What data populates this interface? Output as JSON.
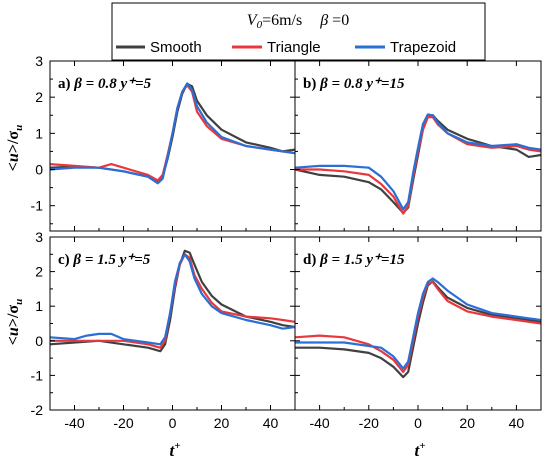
{
  "legend": {
    "header": {
      "v_sym": "V",
      "v_sub": "0",
      "v_rest": "=6m/s",
      "beta_sym": "β",
      "beta_rest": " =0"
    },
    "entries": [
      {
        "label": "Smooth",
        "color": "#404040"
      },
      {
        "label": "Triangle",
        "color": "#e8383d"
      },
      {
        "label": "Trapezoid",
        "color": "#2a6fd6"
      }
    ]
  },
  "axes": {
    "xlabel": {
      "main": "t",
      "sup": "+"
    },
    "ylabel": {
      "open": "<",
      "main": "u",
      "tilde": "~",
      "mid": ">/σ",
      "sub": "u"
    },
    "xlim": [
      -50,
      50
    ],
    "xticks": [
      "-40",
      "-20",
      "0",
      "20",
      "40"
    ],
    "ytick_sets": [
      [
        "3",
        "2",
        "1",
        "0",
        "-1"
      ],
      [
        "3",
        "2",
        "1",
        "0",
        "-1",
        "-2"
      ]
    ]
  },
  "panels": [
    {
      "label": "a)",
      "beta": "β = 0.8",
      "yplus": "y⁺=5"
    },
    {
      "label": "b)",
      "beta": "β = 0.8",
      "yplus": "y⁺=15"
    },
    {
      "label": "c)",
      "beta": "β = 1.5",
      "yplus": "y⁺=5"
    },
    {
      "label": "d)",
      "beta": "β = 1.5",
      "yplus": "y⁺=15"
    }
  ],
  "chart_data": [
    {
      "type": "line",
      "panel": "a",
      "xlim": [
        -50,
        50
      ],
      "ylim": [
        -1.7,
        3
      ],
      "series": [
        {
          "name": "Smooth",
          "color": "#404040",
          "points": [
            [
              -50,
              0.05
            ],
            [
              -40,
              0.08
            ],
            [
              -30,
              0.05
            ],
            [
              -20,
              -0.05
            ],
            [
              -10,
              -0.2
            ],
            [
              -6,
              -0.35
            ],
            [
              -4,
              -0.2
            ],
            [
              -2,
              0.3
            ],
            [
              0,
              0.9
            ],
            [
              2,
              1.6
            ],
            [
              4,
              2.1
            ],
            [
              6,
              2.37
            ],
            [
              8,
              2.3
            ],
            [
              10,
              1.9
            ],
            [
              14,
              1.5
            ],
            [
              20,
              1.1
            ],
            [
              30,
              0.75
            ],
            [
              40,
              0.6
            ],
            [
              45,
              0.5
            ],
            [
              50,
              0.55
            ]
          ]
        },
        {
          "name": "Triangle",
          "color": "#e8383d",
          "points": [
            [
              -50,
              0.15
            ],
            [
              -40,
              0.1
            ],
            [
              -30,
              0.05
            ],
            [
              -25,
              0.15
            ],
            [
              -20,
              0.05
            ],
            [
              -10,
              -0.15
            ],
            [
              -6,
              -0.3
            ],
            [
              -4,
              -0.15
            ],
            [
              -2,
              0.4
            ],
            [
              0,
              1.0
            ],
            [
              2,
              1.7
            ],
            [
              4,
              2.15
            ],
            [
              6,
              2.33
            ],
            [
              8,
              2.15
            ],
            [
              10,
              1.6
            ],
            [
              14,
              1.2
            ],
            [
              20,
              0.85
            ],
            [
              30,
              0.65
            ],
            [
              40,
              0.55
            ],
            [
              50,
              0.45
            ]
          ]
        },
        {
          "name": "Trapezoid",
          "color": "#2a6fd6",
          "points": [
            [
              -50,
              0.0
            ],
            [
              -40,
              0.05
            ],
            [
              -30,
              0.05
            ],
            [
              -20,
              -0.05
            ],
            [
              -10,
              -0.2
            ],
            [
              -6,
              -0.38
            ],
            [
              -4,
              -0.25
            ],
            [
              -2,
              0.35
            ],
            [
              0,
              1.0
            ],
            [
              2,
              1.7
            ],
            [
              4,
              2.15
            ],
            [
              6,
              2.38
            ],
            [
              8,
              2.2
            ],
            [
              10,
              1.75
            ],
            [
              14,
              1.3
            ],
            [
              20,
              0.9
            ],
            [
              30,
              0.65
            ],
            [
              40,
              0.55
            ],
            [
              50,
              0.45
            ]
          ]
        }
      ]
    },
    {
      "type": "line",
      "panel": "b",
      "xlim": [
        -50,
        50
      ],
      "ylim": [
        -1.7,
        3
      ],
      "series": [
        {
          "name": "Smooth",
          "color": "#404040",
          "points": [
            [
              -50,
              0.0
            ],
            [
              -40,
              -0.15
            ],
            [
              -30,
              -0.2
            ],
            [
              -20,
              -0.35
            ],
            [
              -15,
              -0.55
            ],
            [
              -10,
              -0.9
            ],
            [
              -6,
              -1.2
            ],
            [
              -4,
              -1.05
            ],
            [
              -2,
              -0.3
            ],
            [
              0,
              0.4
            ],
            [
              2,
              1.1
            ],
            [
              4,
              1.45
            ],
            [
              6,
              1.5
            ],
            [
              8,
              1.35
            ],
            [
              12,
              1.1
            ],
            [
              20,
              0.85
            ],
            [
              30,
              0.65
            ],
            [
              40,
              0.55
            ],
            [
              45,
              0.35
            ],
            [
              50,
              0.4
            ]
          ]
        },
        {
          "name": "Triangle",
          "color": "#e8383d",
          "points": [
            [
              -50,
              0.0
            ],
            [
              -40,
              0.0
            ],
            [
              -30,
              -0.05
            ],
            [
              -20,
              -0.15
            ],
            [
              -15,
              -0.4
            ],
            [
              -10,
              -0.75
            ],
            [
              -6,
              -1.22
            ],
            [
              -4,
              -1.0
            ],
            [
              -2,
              -0.2
            ],
            [
              0,
              0.5
            ],
            [
              2,
              1.1
            ],
            [
              4,
              1.45
            ],
            [
              6,
              1.45
            ],
            [
              8,
              1.25
            ],
            [
              12,
              1.0
            ],
            [
              20,
              0.7
            ],
            [
              30,
              0.6
            ],
            [
              40,
              0.65
            ],
            [
              45,
              0.55
            ],
            [
              50,
              0.5
            ]
          ]
        },
        {
          "name": "Trapezoid",
          "color": "#2a6fd6",
          "points": [
            [
              -50,
              0.05
            ],
            [
              -40,
              0.1
            ],
            [
              -30,
              0.1
            ],
            [
              -20,
              0.05
            ],
            [
              -15,
              -0.2
            ],
            [
              -10,
              -0.6
            ],
            [
              -6,
              -1.1
            ],
            [
              -4,
              -0.9
            ],
            [
              -2,
              -0.1
            ],
            [
              0,
              0.6
            ],
            [
              2,
              1.25
            ],
            [
              4,
              1.52
            ],
            [
              6,
              1.5
            ],
            [
              8,
              1.3
            ],
            [
              12,
              1.0
            ],
            [
              20,
              0.75
            ],
            [
              30,
              0.65
            ],
            [
              40,
              0.7
            ],
            [
              45,
              0.6
            ],
            [
              50,
              0.55
            ]
          ]
        }
      ]
    },
    {
      "type": "line",
      "panel": "c",
      "xlim": [
        -50,
        50
      ],
      "ylim": [
        -2,
        3
      ],
      "series": [
        {
          "name": "Smooth",
          "color": "#404040",
          "points": [
            [
              -50,
              -0.1
            ],
            [
              -40,
              -0.05
            ],
            [
              -30,
              0.0
            ],
            [
              -20,
              -0.1
            ],
            [
              -10,
              -0.2
            ],
            [
              -5,
              -0.3
            ],
            [
              -3,
              -0.1
            ],
            [
              -1,
              0.6
            ],
            [
              1,
              1.5
            ],
            [
              3,
              2.2
            ],
            [
              5,
              2.6
            ],
            [
              7,
              2.55
            ],
            [
              9,
              2.2
            ],
            [
              12,
              1.7
            ],
            [
              16,
              1.3
            ],
            [
              20,
              1.05
            ],
            [
              30,
              0.7
            ],
            [
              40,
              0.55
            ],
            [
              45,
              0.45
            ],
            [
              50,
              0.4
            ]
          ]
        },
        {
          "name": "Triangle",
          "color": "#e8383d",
          "points": [
            [
              -50,
              0.0
            ],
            [
              -40,
              0.0
            ],
            [
              -30,
              0.0
            ],
            [
              -20,
              0.0
            ],
            [
              -10,
              -0.1
            ],
            [
              -5,
              -0.2
            ],
            [
              -3,
              0.0
            ],
            [
              -1,
              0.8
            ],
            [
              1,
              1.6
            ],
            [
              3,
              2.2
            ],
            [
              5,
              2.5
            ],
            [
              7,
              2.4
            ],
            [
              9,
              1.9
            ],
            [
              12,
              1.5
            ],
            [
              16,
              1.1
            ],
            [
              20,
              0.85
            ],
            [
              30,
              0.7
            ],
            [
              40,
              0.65
            ],
            [
              45,
              0.6
            ],
            [
              50,
              0.55
            ]
          ]
        },
        {
          "name": "Trapezoid",
          "color": "#2a6fd6",
          "points": [
            [
              -50,
              0.1
            ],
            [
              -40,
              0.05
            ],
            [
              -35,
              0.15
            ],
            [
              -30,
              0.2
            ],
            [
              -25,
              0.2
            ],
            [
              -20,
              0.05
            ],
            [
              -10,
              -0.05
            ],
            [
              -5,
              -0.1
            ],
            [
              -3,
              0.1
            ],
            [
              -1,
              0.8
            ],
            [
              1,
              1.7
            ],
            [
              3,
              2.25
            ],
            [
              5,
              2.5
            ],
            [
              7,
              2.3
            ],
            [
              9,
              1.8
            ],
            [
              12,
              1.35
            ],
            [
              16,
              1.0
            ],
            [
              20,
              0.8
            ],
            [
              30,
              0.6
            ],
            [
              40,
              0.45
            ],
            [
              45,
              0.35
            ],
            [
              50,
              0.4
            ]
          ]
        }
      ]
    },
    {
      "type": "line",
      "panel": "d",
      "xlim": [
        -50,
        50
      ],
      "ylim": [
        -2,
        3
      ],
      "series": [
        {
          "name": "Smooth",
          "color": "#404040",
          "points": [
            [
              -50,
              -0.2
            ],
            [
              -40,
              -0.2
            ],
            [
              -30,
              -0.25
            ],
            [
              -20,
              -0.35
            ],
            [
              -15,
              -0.5
            ],
            [
              -10,
              -0.75
            ],
            [
              -6,
              -1.05
            ],
            [
              -4,
              -0.9
            ],
            [
              -2,
              -0.2
            ],
            [
              0,
              0.5
            ],
            [
              2,
              1.1
            ],
            [
              4,
              1.6
            ],
            [
              6,
              1.72
            ],
            [
              8,
              1.55
            ],
            [
              12,
              1.25
            ],
            [
              20,
              0.95
            ],
            [
              30,
              0.75
            ],
            [
              40,
              0.65
            ],
            [
              45,
              0.6
            ],
            [
              50,
              0.55
            ]
          ]
        },
        {
          "name": "Triangle",
          "color": "#e8383d",
          "points": [
            [
              -50,
              0.1
            ],
            [
              -40,
              0.15
            ],
            [
              -30,
              0.1
            ],
            [
              -20,
              -0.1
            ],
            [
              -15,
              -0.3
            ],
            [
              -10,
              -0.55
            ],
            [
              -6,
              -0.9
            ],
            [
              -4,
              -0.7
            ],
            [
              -2,
              0.0
            ],
            [
              0,
              0.7
            ],
            [
              2,
              1.25
            ],
            [
              4,
              1.65
            ],
            [
              6,
              1.7
            ],
            [
              8,
              1.5
            ],
            [
              12,
              1.15
            ],
            [
              20,
              0.85
            ],
            [
              30,
              0.7
            ],
            [
              40,
              0.6
            ],
            [
              45,
              0.55
            ],
            [
              50,
              0.5
            ]
          ]
        },
        {
          "name": "Trapezoid",
          "color": "#2a6fd6",
          "points": [
            [
              -50,
              -0.05
            ],
            [
              -40,
              -0.05
            ],
            [
              -30,
              -0.05
            ],
            [
              -20,
              -0.15
            ],
            [
              -15,
              -0.2
            ],
            [
              -10,
              -0.45
            ],
            [
              -6,
              -0.8
            ],
            [
              -4,
              -0.6
            ],
            [
              -2,
              0.1
            ],
            [
              0,
              0.8
            ],
            [
              2,
              1.35
            ],
            [
              4,
              1.7
            ],
            [
              6,
              1.8
            ],
            [
              8,
              1.7
            ],
            [
              12,
              1.45
            ],
            [
              20,
              1.05
            ],
            [
              30,
              0.8
            ],
            [
              40,
              0.7
            ],
            [
              45,
              0.65
            ],
            [
              50,
              0.6
            ]
          ]
        }
      ]
    }
  ]
}
